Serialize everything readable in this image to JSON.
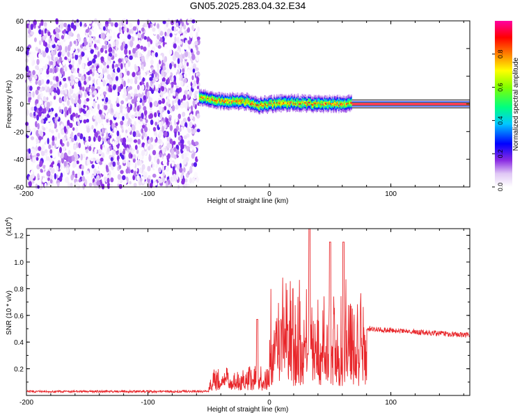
{
  "title": "GN05.2025.283.04.32.E34",
  "chart_data": [
    {
      "type": "heatmap",
      "xlabel": "Height of straight line (km)",
      "ylabel": "Frequency (Hz)",
      "xlim": [
        -200,
        165
      ],
      "ylim": [
        -60,
        60
      ],
      "xticks": [
        "-200",
        "-100",
        "0",
        "100"
      ],
      "yticks": [
        "-60",
        "-40",
        "-20",
        "0",
        "20",
        "40",
        "60"
      ],
      "colorbar": {
        "label": "Normalized spectral amplitude",
        "ticks": [
          "0.0",
          "0.2",
          "0.4",
          "0.6",
          "0.8"
        ],
        "range": [
          0,
          1
        ]
      },
      "regions": [
        {
          "name": "noise",
          "x_range": [
            -200,
            -58
          ],
          "f_range": [
            -60,
            60
          ],
          "amplitude_range": [
            0.0,
            0.2
          ]
        },
        {
          "name": "signal",
          "x_range": [
            -58,
            68
          ],
          "f_center_profile": [
            [
              -58,
              5
            ],
            [
              -40,
              2
            ],
            [
              -20,
              2
            ],
            [
              -10,
              -1
            ],
            [
              0,
              0
            ],
            [
              20,
              1
            ],
            [
              40,
              0
            ],
            [
              60,
              0
            ],
            [
              68,
              1
            ]
          ],
          "f_halfwidth": 4,
          "amplitude_range": [
            0.2,
            1.0
          ]
        },
        {
          "name": "stable-tone",
          "x_range": [
            68,
            165
          ],
          "f_center": 0,
          "amplitude": 1.0
        }
      ]
    },
    {
      "type": "line",
      "xlabel": "Height of straight line (km)",
      "ylabel": "SNR (10 * v/v)",
      "y_multiplier": "(x10",
      "y_multiplier_exp": "4",
      "y_multiplier_close": ")",
      "xlim": [
        -200,
        165
      ],
      "ylim": [
        0,
        1.25
      ],
      "xticks": [
        "-200",
        "-100",
        "0",
        "100"
      ],
      "yticks": [
        "0.2",
        "0.4",
        "0.6",
        "0.8",
        "1.0",
        "1.2"
      ],
      "color": "#e8262a",
      "series_profile": [
        {
          "x_range": [
            -200,
            -50
          ],
          "baseline": 0.03,
          "noise": 0.008
        },
        {
          "x_range": [
            -50,
            0
          ],
          "baseline": 0.18,
          "noise": 0.22
        },
        {
          "x_range": [
            0,
            80
          ],
          "baseline": 0.35,
          "noise": 0.9
        },
        {
          "x_range": [
            80,
            165
          ],
          "baseline": 0.5,
          "end": 0.45,
          "noise": 0.02
        }
      ],
      "annotations": [
        {
          "x": 33,
          "y": 1.25
        },
        {
          "x": 50,
          "y": 1.15
        },
        {
          "x": 61,
          "y": 1.15
        },
        {
          "x": -10,
          "y": 0.57
        }
      ]
    }
  ]
}
